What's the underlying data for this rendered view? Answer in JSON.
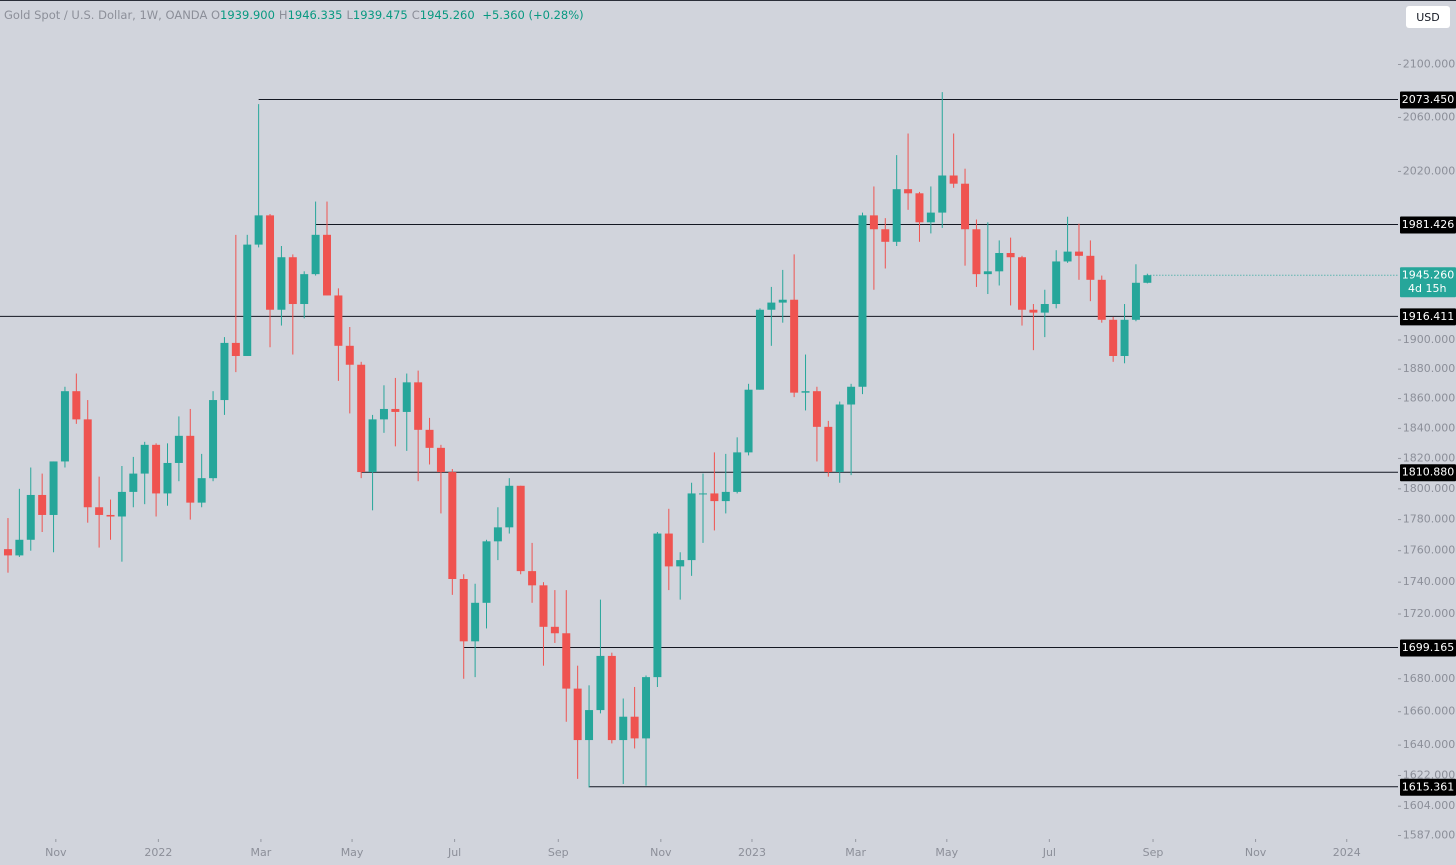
{
  "header": {
    "symbol": "Gold Spot / U.S. Dollar, 1W, OANDA",
    "ohlc": [
      {
        "key": "O",
        "value": "1939.900"
      },
      {
        "key": "H",
        "value": "1946.335"
      },
      {
        "key": "L",
        "value": "1939.475"
      },
      {
        "key": "C",
        "value": "1945.260"
      }
    ],
    "change": "+5.360 (+0.28%)",
    "currency": "USD"
  },
  "chart_data": {
    "type": "candlestick",
    "log_scale": true,
    "grid": false,
    "up_color": "#26a69a",
    "down_color": "#ef5350",
    "x": [
      0,
      1,
      2,
      3,
      4,
      5,
      6,
      7,
      8,
      9,
      10,
      11,
      12,
      13,
      14,
      15,
      16,
      17,
      18,
      19,
      20,
      21,
      22,
      23,
      24,
      25,
      26,
      27,
      28,
      29,
      30,
      31,
      32,
      33,
      34,
      35,
      36,
      37,
      38,
      39,
      40,
      41,
      42,
      43,
      44,
      45,
      46,
      47,
      48,
      49,
      50,
      51,
      52,
      53,
      54,
      55,
      56,
      57,
      58,
      59,
      60,
      61,
      62,
      63,
      64,
      65,
      66,
      67,
      68,
      69,
      70,
      71,
      72,
      73,
      74,
      75,
      76,
      77,
      78,
      79,
      80,
      81,
      82,
      83,
      84,
      85,
      86,
      87,
      88,
      89,
      90,
      91,
      92,
      93,
      94,
      95,
      96,
      97,
      98,
      99,
      100
    ],
    "open": [
      1761,
      1757,
      1767,
      1796,
      1783,
      1818,
      1865,
      1846,
      1788,
      1783,
      1782,
      1798,
      1810,
      1829,
      1797,
      1817,
      1835,
      1791,
      1807,
      1859,
      1898,
      1889,
      1967,
      1988,
      1921,
      1958,
      1925,
      1946,
      1974,
      1931,
      1896,
      1883,
      1811,
      1846,
      1853,
      1851,
      1871,
      1839,
      1827,
      1811,
      1742,
      1703,
      1727,
      1766,
      1775,
      1802,
      1747,
      1738,
      1712,
      1708,
      1674,
      1643,
      1661,
      1694,
      1643,
      1657,
      1644,
      1681,
      1771,
      1750,
      1754,
      1797,
      1797,
      1792,
      1798,
      1824,
      1866,
      1921,
      1926,
      1928,
      1864,
      1865,
      1841,
      1811,
      1856,
      1868,
      1988,
      1978,
      1969,
      2007,
      2004,
      1983,
      1990,
      2017,
      2011,
      1978,
      1946,
      1948,
      1961,
      1958,
      1921,
      1919,
      1925,
      1955,
      1962,
      1959,
      1942,
      1914,
      1889,
      1914,
      1939.9
    ],
    "high": [
      1781,
      1800,
      1814,
      1810,
      1818,
      1868,
      1877,
      1859,
      1808,
      1793,
      1815,
      1821,
      1831,
      1830,
      1830,
      1848,
      1853,
      1823,
      1865,
      1902,
      1974,
      1974,
      2070,
      1989,
      1966,
      1960,
      1948,
      1998,
      1998,
      1936,
      1909,
      1885,
      1849,
      1869,
      1874,
      1877,
      1879,
      1847,
      1829,
      1813,
      1745,
      1739,
      1767,
      1788,
      1807,
      1802,
      1765,
      1740,
      1735,
      1735,
      1688,
      1676,
      1729,
      1696,
      1668,
      1675,
      1682,
      1772,
      1787,
      1759,
      1804,
      1810,
      1824,
      1823,
      1834,
      1870,
      1922,
      1937,
      1949,
      1960,
      1890,
      1868,
      1845,
      1858,
      1870,
      1990,
      2009,
      1986,
      2032,
      2048,
      2005,
      2009,
      2079,
      2048,
      2022,
      1985,
      1983,
      1970,
      1972,
      1959,
      1925,
      1935,
      1963,
      1987,
      1982,
      1970,
      1945,
      1916,
      1925,
      1953,
      1946.335
    ],
    "low": [
      1746,
      1756,
      1760,
      1772,
      1759,
      1814,
      1843,
      1778,
      1762,
      1767,
      1753,
      1788,
      1790,
      1782,
      1789,
      1805,
      1780,
      1788,
      1805,
      1849,
      1878,
      1889,
      1965,
      1895,
      1910,
      1890,
      1915,
      1945,
      1931,
      1872,
      1850,
      1807,
      1786,
      1837,
      1828,
      1825,
      1805,
      1816,
      1784,
      1732,
      1680,
      1681,
      1711,
      1754,
      1771,
      1745,
      1727,
      1688,
      1702,
      1654,
      1620,
      1615,
      1659,
      1641,
      1617,
      1638,
      1616,
      1675,
      1735,
      1729,
      1744,
      1765,
      1773,
      1784,
      1797,
      1822,
      1866,
      1896,
      1912,
      1861,
      1852,
      1818,
      1808,
      1804,
      1809,
      1863,
      1935,
      1950,
      1966,
      1992,
      1969,
      1975,
      1979,
      2008,
      1952,
      1937,
      1932,
      1938,
      1924,
      1910,
      1893,
      1902,
      1922,
      1954,
      1942,
      1927,
      1912,
      1885,
      1884,
      1913,
      1939.475
    ],
    "close": [
      1757,
      1767,
      1796,
      1783,
      1818,
      1865,
      1846,
      1788,
      1783,
      1782,
      1798,
      1810,
      1829,
      1797,
      1817,
      1835,
      1791,
      1807,
      1859,
      1898,
      1889,
      1967,
      1988,
      1921,
      1958,
      1925,
      1946,
      1974,
      1931,
      1896,
      1883,
      1811,
      1846,
      1853,
      1851,
      1871,
      1839,
      1827,
      1811,
      1742,
      1703,
      1727,
      1766,
      1775,
      1802,
      1747,
      1738,
      1712,
      1708,
      1674,
      1643,
      1661,
      1694,
      1643,
      1657,
      1644,
      1681,
      1771,
      1750,
      1754,
      1797,
      1797,
      1792,
      1798,
      1824,
      1866,
      1921,
      1926,
      1928,
      1864,
      1865,
      1841,
      1811,
      1856,
      1868,
      1988,
      1978,
      1969,
      2007,
      2004,
      1983,
      1990,
      2017,
      2011,
      1978,
      1946,
      1948,
      1961,
      1958,
      1921,
      1919,
      1925,
      1955,
      1962,
      1959,
      1942,
      1914,
      1889,
      1914,
      1939.9,
      1945.26
    ],
    "xlim": [
      -0.7,
      122.0
    ],
    "xticks": [
      {
        "value": 4.2,
        "label": "Nov"
      },
      {
        "value": 13.2,
        "label": "2022"
      },
      {
        "value": 22.2,
        "label": "Mar"
      },
      {
        "value": 30.2,
        "label": "May"
      },
      {
        "value": 39.2,
        "label": "Jul"
      },
      {
        "value": 48.3,
        "label": "Sep"
      },
      {
        "value": 57.3,
        "label": "Nov"
      },
      {
        "value": 65.3,
        "label": "2023"
      },
      {
        "value": 74.4,
        "label": "Mar"
      },
      {
        "value": 82.4,
        "label": "May"
      },
      {
        "value": 91.4,
        "label": "Jul"
      },
      {
        "value": 100.5,
        "label": "Sep"
      },
      {
        "value": 109.5,
        "label": "Nov"
      },
      {
        "value": 117.5,
        "label": "2024"
      }
    ],
    "ylim": [
      1585,
      2149
    ],
    "yticks": [
      {
        "value": 2100,
        "label": "2100.000"
      },
      {
        "value": 2060,
        "label": "2060.000"
      },
      {
        "value": 2020,
        "label": "2020.000"
      },
      {
        "value": 1900,
        "label": "1900.000"
      },
      {
        "value": 1880,
        "label": "1880.000"
      },
      {
        "value": 1860,
        "label": "1860.000"
      },
      {
        "value": 1840,
        "label": "1840.000"
      },
      {
        "value": 1820,
        "label": "1820.000"
      },
      {
        "value": 1800,
        "label": "1800.000"
      },
      {
        "value": 1780,
        "label": "1780.000"
      },
      {
        "value": 1760,
        "label": "1760.000"
      },
      {
        "value": 1740,
        "label": "1740.000"
      },
      {
        "value": 1720,
        "label": "1720.000"
      },
      {
        "value": 1680,
        "label": "1680.000"
      },
      {
        "value": 1660,
        "label": "1660.000"
      },
      {
        "value": 1640,
        "label": "1640.000"
      },
      {
        "value": 1622,
        "label": "1622.000"
      },
      {
        "value": 1604,
        "label": "1604.000"
      },
      {
        "value": 1587,
        "label": "1587.000"
      }
    ],
    "hlines": [
      {
        "value": 2073.45,
        "label": "2073.450",
        "x_start": 22
      },
      {
        "value": 1981.426,
        "label": "1981.426",
        "x_start": 27
      },
      {
        "value": 1916.411,
        "label": "1916.411"
      },
      {
        "value": 1810.88,
        "label": "1810.880",
        "x_start": 31
      },
      {
        "value": 1699.165,
        "label": "1699.165",
        "x_start": 40
      },
      {
        "value": 1615.361,
        "label": "1615.361",
        "x_start": 51
      }
    ],
    "current_price": {
      "value": 1945.26,
      "label": "1945.260",
      "countdown": "4d 15h"
    }
  }
}
